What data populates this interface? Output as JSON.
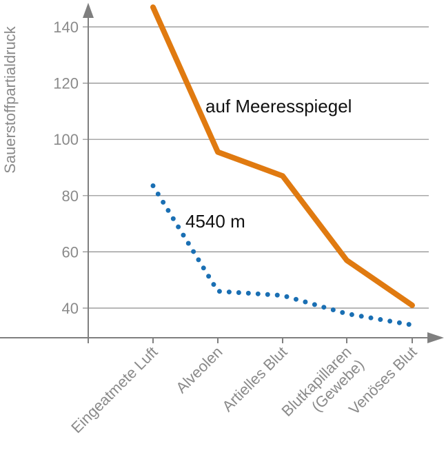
{
  "chart_data": {
    "type": "line",
    "title": "",
    "xlabel": "",
    "ylabel": "Sauerstoffpartialdruck",
    "categories": [
      [
        "Eingeatmete Luft"
      ],
      [
        "Alveolen"
      ],
      [
        "Artielles Blut"
      ],
      [
        "Blutkapillaren",
        "(Gewebe)"
      ],
      [
        "Venöses Blut"
      ]
    ],
    "ylim": [
      30,
      150
    ],
    "yticks": [
      40,
      60,
      80,
      100,
      120,
      140
    ],
    "grid": true,
    "series": [
      {
        "name": "auf Meeresspiegel",
        "values": [
          147,
          95.5,
          87,
          57,
          41
        ],
        "color": "#e07a10",
        "style": "solid"
      },
      {
        "name": "4540 m",
        "values": [
          83.5,
          46,
          44.5,
          38,
          34
        ],
        "color": "#1a6fb3",
        "style": "dotted"
      }
    ],
    "axis_color": "#7f7f7f",
    "grid_color": "#8c8c8c"
  }
}
